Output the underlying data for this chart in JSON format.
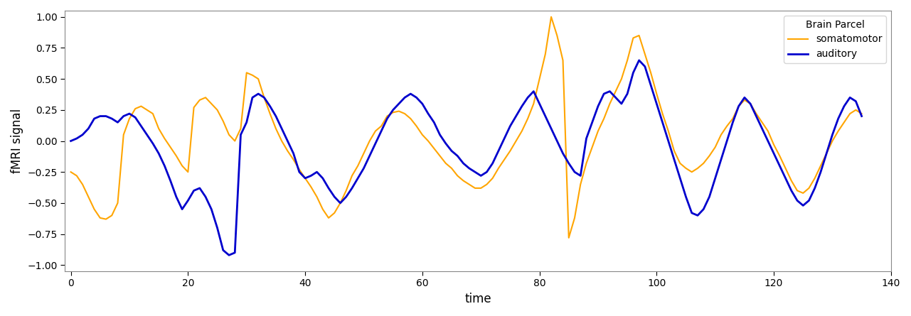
{
  "title": "",
  "xlabel": "time",
  "ylabel": "fMRI signal",
  "legend_title": "Brain Parcel",
  "series": [
    {
      "label": "somatomotor",
      "color": "#FFA500"
    },
    {
      "label": "auditory",
      "color": "#0000CD"
    }
  ],
  "xlim": [
    -1,
    140
  ],
  "ylim": [
    -1.05,
    1.05
  ],
  "yticks": [
    -1.0,
    -0.75,
    -0.5,
    -0.25,
    0.0,
    0.25,
    0.5,
    0.75,
    1.0
  ],
  "xticks": [
    0,
    20,
    40,
    60,
    80,
    100,
    120,
    140
  ],
  "figsize": [
    12.81,
    4.45
  ],
  "dpi": 100,
  "somatomotor": [
    -0.25,
    -0.28,
    -0.35,
    -0.45,
    -0.55,
    -0.62,
    -0.63,
    -0.6,
    -0.5,
    0.05,
    0.18,
    0.26,
    0.28,
    0.25,
    0.22,
    0.1,
    0.02,
    -0.05,
    -0.12,
    -0.2,
    -0.25,
    0.27,
    0.33,
    0.35,
    0.3,
    0.25,
    0.16,
    0.05,
    0.0,
    0.1,
    0.55,
    0.53,
    0.5,
    0.35,
    0.22,
    0.1,
    0.0,
    -0.08,
    -0.15,
    -0.23,
    -0.3,
    -0.37,
    -0.45,
    -0.55,
    -0.62,
    -0.58,
    -0.5,
    -0.4,
    -0.28,
    -0.2,
    -0.1,
    0.0,
    0.08,
    0.12,
    0.2,
    0.23,
    0.24,
    0.22,
    0.18,
    0.12,
    0.05,
    0.0,
    -0.06,
    -0.12,
    -0.18,
    -0.22,
    -0.28,
    -0.32,
    -0.35,
    -0.38,
    -0.38,
    -0.35,
    -0.3,
    -0.22,
    -0.15,
    -0.08,
    0.0,
    0.08,
    0.18,
    0.3,
    0.5,
    0.7,
    1.0,
    0.85,
    0.65,
    -0.78,
    -0.62,
    -0.35,
    -0.18,
    -0.05,
    0.08,
    0.18,
    0.3,
    0.4,
    0.5,
    0.65,
    0.83,
    0.85,
    0.7,
    0.55,
    0.38,
    0.22,
    0.08,
    -0.08,
    -0.18,
    -0.22,
    -0.25,
    -0.22,
    -0.18,
    -0.12,
    -0.05,
    0.05,
    0.12,
    0.18,
    0.28,
    0.33,
    0.3,
    0.22,
    0.15,
    0.08,
    -0.03,
    -0.12,
    -0.22,
    -0.32,
    -0.4,
    -0.42,
    -0.38,
    -0.3,
    -0.2,
    -0.1,
    0.0,
    0.08,
    0.15,
    0.22,
    0.25,
    0.22
  ],
  "auditory": [
    0.0,
    0.02,
    0.05,
    0.1,
    0.18,
    0.2,
    0.2,
    0.18,
    0.15,
    0.2,
    0.22,
    0.19,
    0.12,
    0.05,
    -0.02,
    -0.1,
    -0.2,
    -0.32,
    -0.45,
    -0.55,
    -0.48,
    -0.4,
    -0.38,
    -0.45,
    -0.55,
    -0.7,
    -0.88,
    -0.92,
    -0.9,
    0.05,
    0.15,
    0.35,
    0.38,
    0.35,
    0.28,
    0.2,
    0.1,
    0.0,
    -0.1,
    -0.25,
    -0.3,
    -0.28,
    -0.25,
    -0.3,
    -0.38,
    -0.45,
    -0.5,
    -0.45,
    -0.38,
    -0.3,
    -0.22,
    -0.12,
    -0.02,
    0.08,
    0.18,
    0.25,
    0.3,
    0.35,
    0.38,
    0.35,
    0.3,
    0.22,
    0.15,
    0.05,
    -0.02,
    -0.08,
    -0.12,
    -0.18,
    -0.22,
    -0.25,
    -0.28,
    -0.25,
    -0.18,
    -0.08,
    0.02,
    0.12,
    0.2,
    0.28,
    0.35,
    0.4,
    0.3,
    0.2,
    0.1,
    0.0,
    -0.1,
    -0.18,
    -0.25,
    -0.28,
    0.02,
    0.15,
    0.28,
    0.38,
    0.4,
    0.35,
    0.3,
    0.38,
    0.55,
    0.65,
    0.6,
    0.45,
    0.3,
    0.15,
    0.0,
    -0.15,
    -0.3,
    -0.45,
    -0.58,
    -0.6,
    -0.55,
    -0.45,
    -0.3,
    -0.15,
    0.0,
    0.15,
    0.28,
    0.35,
    0.3,
    0.2,
    0.1,
    0.0,
    -0.1,
    -0.2,
    -0.3,
    -0.4,
    -0.48,
    -0.52,
    -0.48,
    -0.38,
    -0.25,
    -0.1,
    0.05,
    0.18,
    0.28,
    0.35,
    0.32,
    0.2
  ]
}
